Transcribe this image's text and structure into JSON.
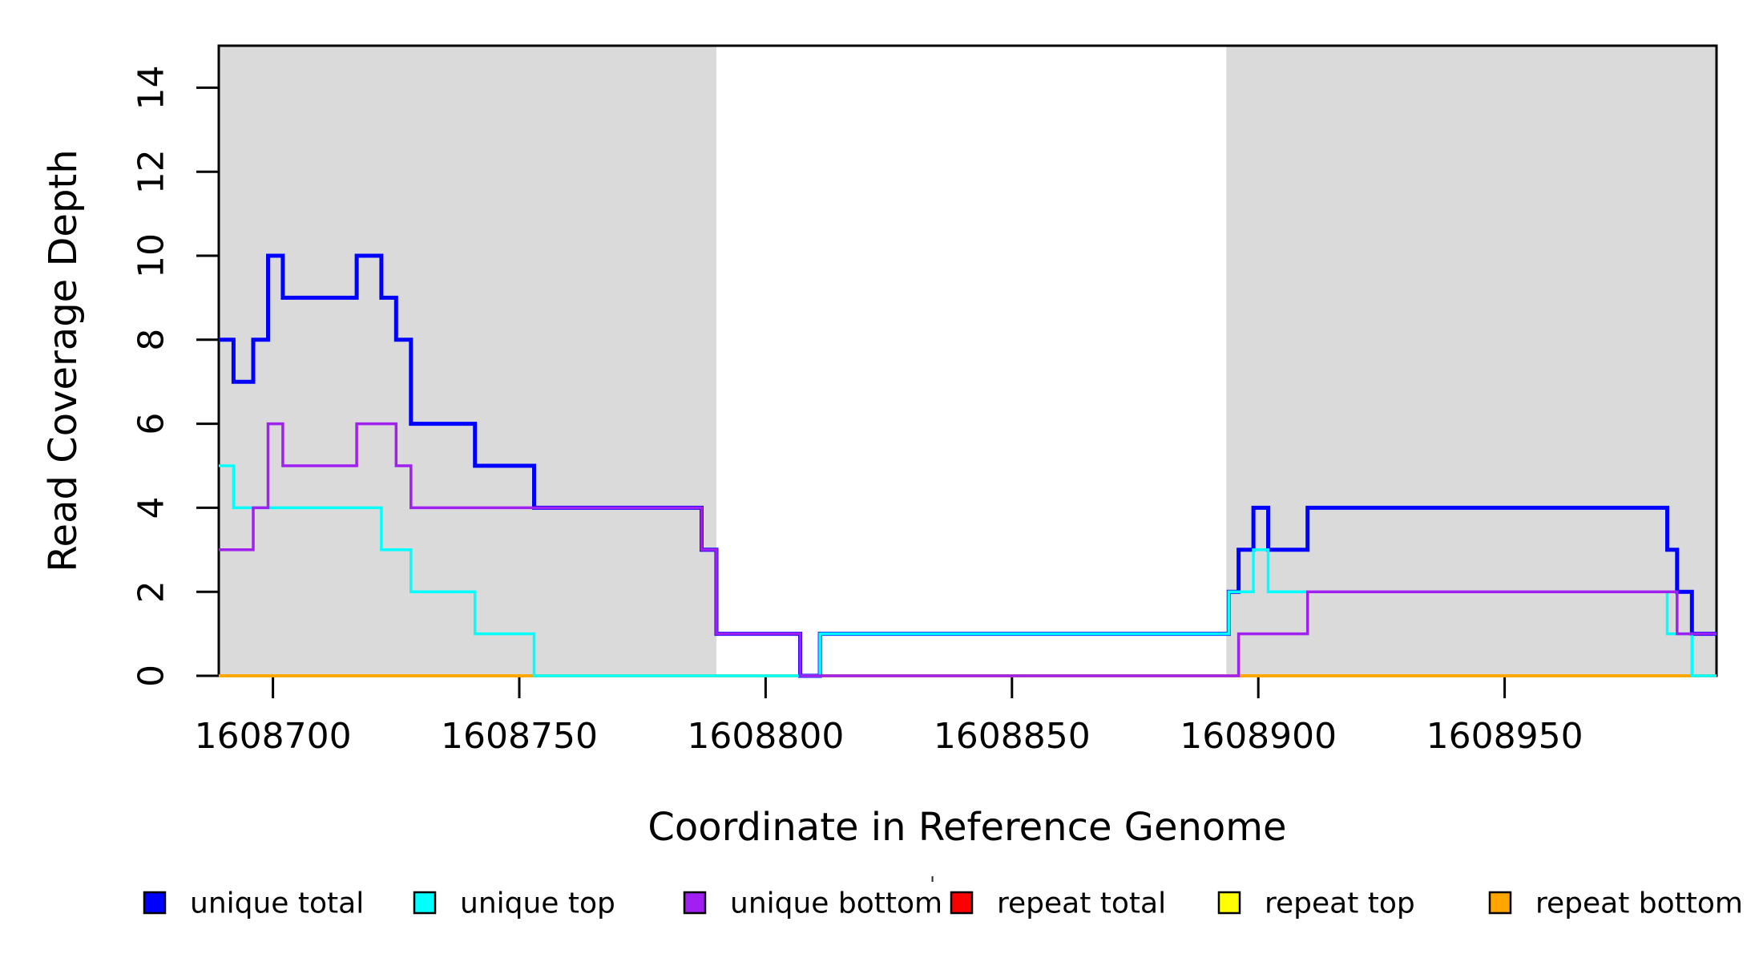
{
  "figure": {
    "background": "#FFFFFF",
    "plot_background": "#FFFFFF",
    "box_color": "#000000"
  },
  "chart_data": {
    "type": "line",
    "style": "step",
    "title": "",
    "xlabel": "Coordinate in Reference Genome",
    "ylabel": "Read Coverage Depth",
    "xlim": [
      1608689,
      1608993
    ],
    "ylim": [
      0,
      15
    ],
    "x_ticks": [
      1608700,
      1608750,
      1608800,
      1608850,
      1608900,
      1608950
    ],
    "y_ticks": [
      0,
      2,
      4,
      6,
      8,
      10,
      12,
      14
    ],
    "grid": false,
    "legend_position": "bottom",
    "shaded_regions": [
      {
        "name": "left-repeat-region",
        "x0": 1608689,
        "x1": 1608790,
        "color": "#DADADA"
      },
      {
        "name": "right-repeat-region",
        "x0": 1608893.5,
        "x1": 1608993,
        "color": "#DADADA"
      }
    ],
    "series": [
      {
        "name": "repeat total",
        "color": "#FF0000",
        "width": 3.5,
        "points": [
          [
            1608689,
            0
          ],
          [
            1608993,
            0
          ]
        ]
      },
      {
        "name": "repeat top",
        "color": "#FFFF00",
        "width": 3.5,
        "points": [
          [
            1608689,
            0
          ],
          [
            1608993,
            0
          ]
        ]
      },
      {
        "name": "repeat bottom",
        "color": "#FFA500",
        "width": 3.5,
        "points": [
          [
            1608689,
            0
          ],
          [
            1608993,
            0
          ]
        ]
      },
      {
        "name": "unique total",
        "color": "#0000FF",
        "width": 5,
        "points": [
          [
            1608689,
            8
          ],
          [
            1608692,
            7
          ],
          [
            1608696,
            8
          ],
          [
            1608699,
            10
          ],
          [
            1608702,
            9
          ],
          [
            1608717,
            10
          ],
          [
            1608722,
            9
          ],
          [
            1608725,
            8
          ],
          [
            1608728,
            6
          ],
          [
            1608741,
            5
          ],
          [
            1608753,
            4
          ],
          [
            1608787,
            3
          ],
          [
            1608790,
            1
          ],
          [
            1608807,
            0
          ],
          [
            1608811,
            1
          ],
          [
            1608894,
            2
          ],
          [
            1608896,
            3
          ],
          [
            1608899,
            4
          ],
          [
            1608902,
            3
          ],
          [
            1608910,
            4
          ],
          [
            1608983,
            3
          ],
          [
            1608985,
            2
          ],
          [
            1608988,
            1
          ],
          [
            1608993,
            1
          ]
        ]
      },
      {
        "name": "unique top",
        "color": "#00FFFF",
        "width": 3.5,
        "points": [
          [
            1608689,
            5
          ],
          [
            1608692,
            4
          ],
          [
            1608722,
            3
          ],
          [
            1608728,
            2
          ],
          [
            1608741,
            1
          ],
          [
            1608753,
            0
          ],
          [
            1608811,
            1
          ],
          [
            1608894,
            2
          ],
          [
            1608899,
            3
          ],
          [
            1608902,
            2
          ],
          [
            1608983,
            1
          ],
          [
            1608988,
            0
          ],
          [
            1608993,
            0
          ]
        ]
      },
      {
        "name": "unique bottom",
        "color": "#A020F0",
        "width": 3.5,
        "points": [
          [
            1608689,
            3
          ],
          [
            1608696,
            4
          ],
          [
            1608699,
            6
          ],
          [
            1608702,
            5
          ],
          [
            1608717,
            6
          ],
          [
            1608725,
            5
          ],
          [
            1608728,
            4
          ],
          [
            1608787,
            3
          ],
          [
            1608790,
            1
          ],
          [
            1608807,
            0
          ],
          [
            1608896,
            1
          ],
          [
            1608910,
            2
          ],
          [
            1608985,
            1
          ],
          [
            1608993,
            1
          ]
        ]
      }
    ],
    "legend": [
      {
        "label": "unique total",
        "color": "#0000FF"
      },
      {
        "label": "unique top",
        "color": "#00FFFF"
      },
      {
        "label": "unique bottom",
        "color": "#A020F0"
      },
      {
        "label": "repeat total",
        "color": "#FF0000"
      },
      {
        "label": "repeat top",
        "color": "#FFFF00"
      },
      {
        "label": "repeat bottom",
        "color": "#FFA500"
      }
    ]
  },
  "artifacts": {
    "stray_mark": "'"
  }
}
